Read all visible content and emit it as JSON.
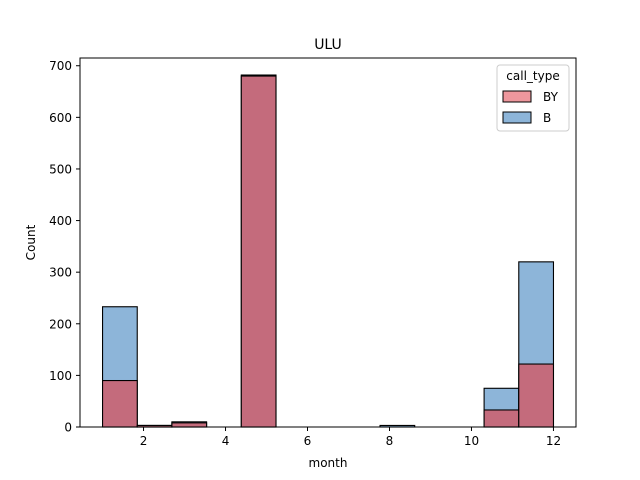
{
  "chart_data": {
    "type": "bar",
    "title": "ULU",
    "xlabel": "month",
    "ylabel": "Count",
    "xlim": [
      0.45,
      12.55
    ],
    "ylim": [
      0,
      715
    ],
    "xticks": [
      2,
      4,
      6,
      8,
      10,
      12
    ],
    "yticks": [
      0,
      100,
      200,
      300,
      400,
      500,
      600,
      700
    ],
    "bin_width": 0.8462,
    "legend": {
      "title": "call_type",
      "position": "top-right",
      "entries": [
        {
          "label": "BY",
          "color": "#e8747c"
        },
        {
          "label": "B",
          "color": "#6a9fd0"
        }
      ]
    },
    "series": [
      {
        "name": "B",
        "color": "#8db5d9",
        "bins": [
          {
            "x": 1.0,
            "value": 233
          },
          {
            "x": 1.846,
            "value": 3
          },
          {
            "x": 2.692,
            "value": 10
          },
          {
            "x": 4.385,
            "value": 682
          },
          {
            "x": 7.769,
            "value": 3
          },
          {
            "x": 10.308,
            "value": 75
          },
          {
            "x": 11.154,
            "value": 320
          }
        ]
      },
      {
        "name": "BY",
        "color": "#c46b7c",
        "bins": [
          {
            "x": 1.0,
            "value": 90
          },
          {
            "x": 1.846,
            "value": 3
          },
          {
            "x": 2.692,
            "value": 8
          },
          {
            "x": 4.385,
            "value": 680
          },
          {
            "x": 10.308,
            "value": 33
          },
          {
            "x": 11.154,
            "value": 122
          }
        ]
      }
    ]
  }
}
